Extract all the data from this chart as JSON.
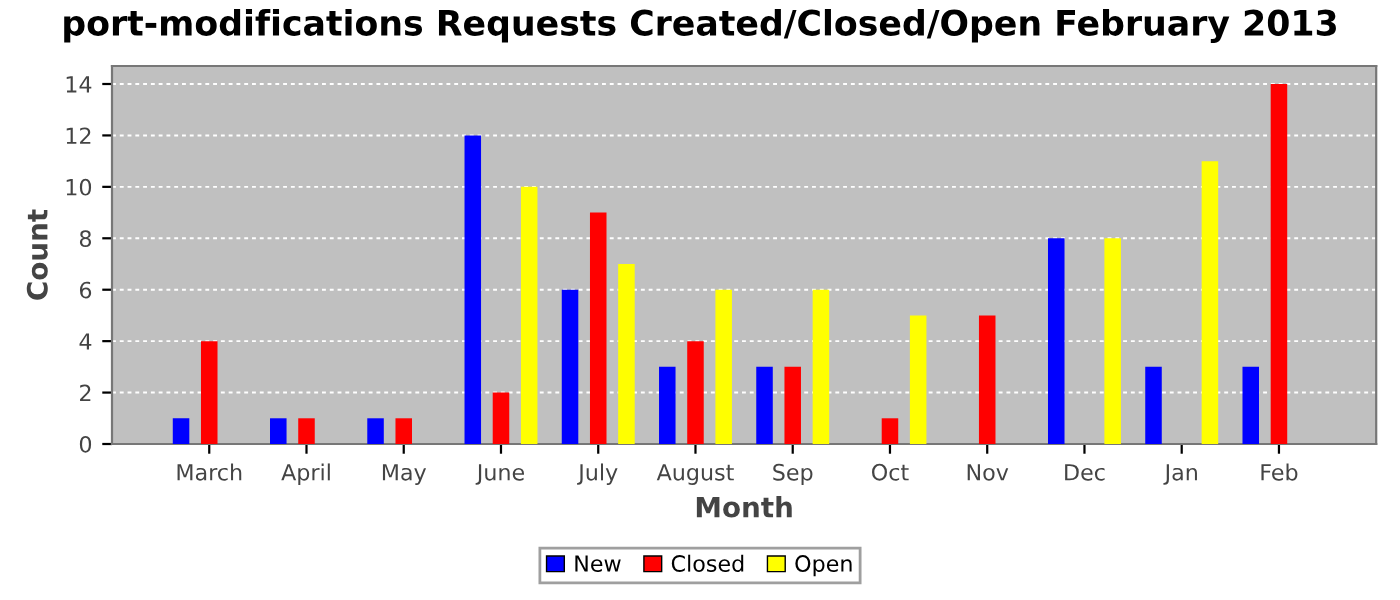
{
  "chart_data": {
    "type": "bar",
    "title": "port-modifications Requests Created/Closed/Open February 2013",
    "xlabel": "Month",
    "ylabel": "Count",
    "categories": [
      "March",
      "April",
      "May",
      "June",
      "July",
      "August",
      "Sep",
      "Oct",
      "Nov",
      "Dec",
      "Jan",
      "Feb"
    ],
    "series": [
      {
        "name": "New",
        "color": "#0000ff",
        "values": [
          1,
          1,
          1,
          12,
          6,
          3,
          3,
          0,
          0,
          8,
          3,
          3
        ]
      },
      {
        "name": "Closed",
        "color": "#ff0000",
        "values": [
          4,
          1,
          1,
          2,
          9,
          4,
          3,
          1,
          5,
          0,
          0,
          14
        ]
      },
      {
        "name": "Open",
        "color": "#ffff00",
        "values": [
          0,
          0,
          0,
          10,
          7,
          6,
          6,
          5,
          0,
          8,
          11,
          0
        ]
      }
    ],
    "ylim": [
      0,
      14.7
    ],
    "yticks": [
      0,
      2,
      4,
      6,
      8,
      10,
      12,
      14
    ],
    "grid": "y",
    "legend": "bottom"
  }
}
